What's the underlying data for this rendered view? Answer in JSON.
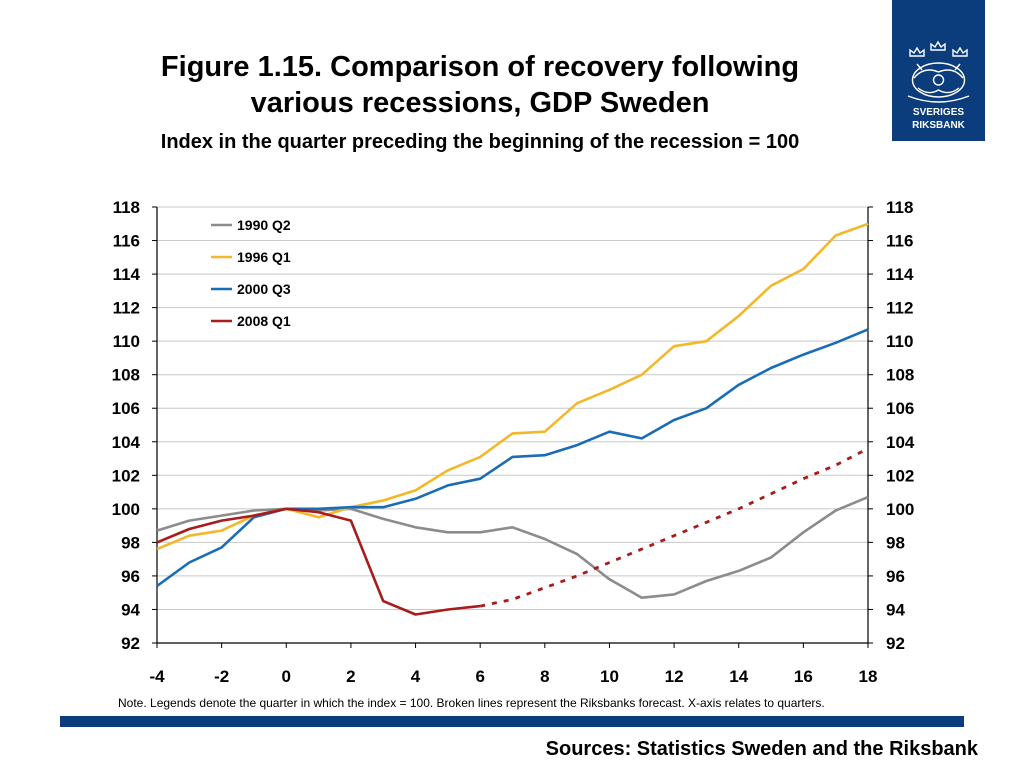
{
  "header": {
    "title_line1": "Figure 1.15. Comparison of recovery following",
    "title_line2": "various recessions, GDP Sweden",
    "subtitle": "Index in the quarter preceding the beginning of the recession = 100"
  },
  "logo": {
    "line1": "SVERIGES",
    "line2": "RIKSBANK",
    "icon": "crown-crest-icon",
    "bg_color": "#0b3d7d"
  },
  "note": "Note. Legends denote the quarter in which the index = 100. Broken lines represent the Riksbanks forecast. X-axis relates to quarters.",
  "sources": "Sources: Statistics Sweden and the Riksbank",
  "chart_data": {
    "type": "line",
    "xlim": [
      -4,
      18
    ],
    "ylim": [
      92,
      118
    ],
    "x_ticks": [
      -4,
      -2,
      0,
      2,
      4,
      6,
      8,
      10,
      12,
      14,
      16,
      18
    ],
    "y_ticks": [
      92,
      94,
      96,
      98,
      100,
      102,
      104,
      106,
      108,
      110,
      112,
      114,
      116,
      118
    ],
    "grid": "horizontal",
    "legend_position": "top-left",
    "secondary_y_axis": true,
    "series": [
      {
        "name": "1990 Q2",
        "color": "#8c8c8c",
        "x": [
          -4,
          -3,
          -2,
          -1,
          0,
          1,
          2,
          3,
          4,
          5,
          6,
          7,
          8,
          9,
          10,
          11,
          12,
          13,
          14,
          15,
          16,
          17,
          18
        ],
        "values": [
          98.7,
          99.3,
          99.6,
          99.9,
          100.0,
          99.9,
          100.0,
          99.4,
          98.9,
          98.6,
          98.6,
          98.9,
          98.2,
          97.3,
          95.8,
          94.7,
          94.9,
          95.7,
          96.3,
          97.1,
          98.6,
          99.9,
          100.7
        ]
      },
      {
        "name": "1996 Q1",
        "color": "#f2b82a",
        "x": [
          -4,
          -3,
          -2,
          -1,
          0,
          1,
          2,
          3,
          4,
          5,
          6,
          7,
          8,
          9,
          10,
          11,
          12,
          13,
          14,
          15,
          16,
          17,
          18
        ],
        "values": [
          97.6,
          98.4,
          98.7,
          99.6,
          100.0,
          99.5,
          100.1,
          100.5,
          101.1,
          102.3,
          103.1,
          104.5,
          104.6,
          106.3,
          107.1,
          108.0,
          109.7,
          110.0,
          111.5,
          113.3,
          114.3,
          116.3,
          117.0
        ]
      },
      {
        "name": "2000 Q3",
        "color": "#1a6db5",
        "x": [
          -4,
          -3,
          -2,
          -1,
          0,
          1,
          2,
          3,
          4,
          5,
          6,
          7,
          8,
          9,
          10,
          11,
          12,
          13,
          14,
          15,
          16,
          17,
          18
        ],
        "values": [
          95.4,
          96.8,
          97.7,
          99.5,
          100.0,
          100.0,
          100.1,
          100.1,
          100.6,
          101.4,
          101.8,
          103.1,
          103.2,
          103.8,
          104.6,
          104.2,
          105.3,
          106.0,
          107.4,
          108.4,
          109.2,
          109.9,
          110.7
        ]
      },
      {
        "name": "2008 Q1",
        "color": "#a81c1c",
        "x": [
          -4,
          -3,
          -2,
          -1,
          0,
          1,
          2,
          3,
          4,
          5,
          6
        ],
        "values": [
          98.0,
          98.8,
          99.3,
          99.6,
          100.0,
          99.8,
          99.3,
          94.5,
          93.7,
          94.0,
          94.2
        ],
        "forecast": {
          "x": [
            6,
            7,
            8,
            9,
            10,
            11,
            12,
            13,
            14,
            15,
            16,
            17,
            18
          ],
          "values": [
            94.2,
            94.6,
            95.3,
            96.0,
            96.8,
            97.6,
            98.4,
            99.2,
            100.0,
            100.9,
            101.8,
            102.6,
            103.6
          ]
        }
      }
    ]
  }
}
